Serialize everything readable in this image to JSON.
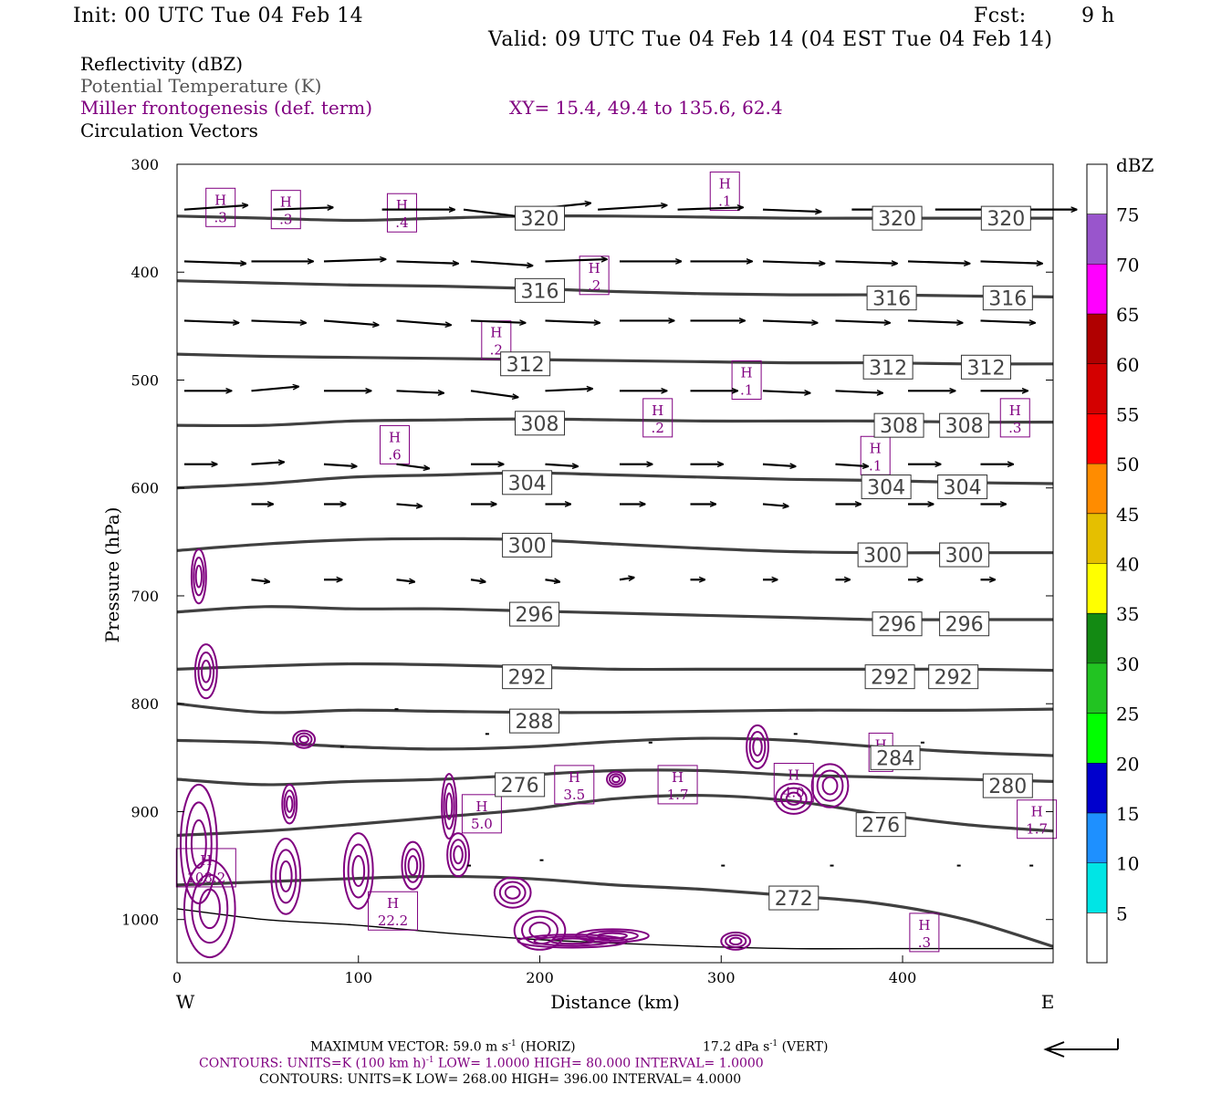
{
  "header": {
    "init": "Init: 00 UTC Tue 04 Feb 14",
    "fcst_label": "Fcst:",
    "fcst_value": "9 h",
    "valid": "Valid: 09 UTC Tue 04 Feb 14 (04 EST Tue 04 Feb 14)"
  },
  "legend": {
    "reflectivity": "Reflectivity (dBZ)",
    "theta": "Potential Temperature (K)",
    "frontogenesis": "Miller frontogenesis (def. term)",
    "xy": "XY=  15.4, 49.4 to 135.6, 62.4",
    "vectors": "Circulation Vectors"
  },
  "colors": {
    "theta": "#404040",
    "frontogenesis": "#800080",
    "vectors": "#000000"
  },
  "chart_data": {
    "type": "cross-section",
    "xlabel": "Distance (km)",
    "ylabel": "Pressure (hPa)",
    "xlim": [
      0,
      483
    ],
    "ylim": [
      300,
      1040
    ],
    "x_ticks": [
      "0",
      "100",
      "200",
      "300",
      "400"
    ],
    "y_ticks": [
      "300",
      "400",
      "500",
      "600",
      "700",
      "800",
      "900",
      "1000"
    ],
    "west_label": "W",
    "east_label": "E",
    "colorbar": {
      "unit": "dBZ",
      "levels": [
        "5",
        "10",
        "15",
        "20",
        "25",
        "30",
        "35",
        "40",
        "45",
        "50",
        "55",
        "60",
        "65",
        "70",
        "75"
      ],
      "colors": [
        "#ffffff",
        "#00e5e5",
        "#1e90ff",
        "#0000cd",
        "#00ff00",
        "#22c322",
        "#138a13",
        "#ffff00",
        "#e5bf00",
        "#ff8c00",
        "#ff0000",
        "#d40000",
        "#b00000",
        "#ff00ff",
        "#9955cc",
        "#ffffff"
      ]
    },
    "theta_lines": [
      {
        "value": 320,
        "p": [
          348,
          350,
          352,
          350,
          348,
          348,
          349,
          350,
          350,
          350,
          350
        ]
      },
      {
        "value": 316,
        "p": [
          408,
          410,
          412,
          413,
          415,
          418,
          420,
          421,
          421,
          422,
          423
        ]
      },
      {
        "value": 312,
        "p": [
          476,
          478,
          479,
          480,
          481,
          482,
          483,
          484,
          484,
          485,
          485
        ]
      },
      {
        "value": 308,
        "p": [
          542,
          542,
          538,
          537,
          536,
          537,
          538,
          538,
          538,
          539,
          539
        ]
      },
      {
        "value": 304,
        "p": [
          600,
          596,
          590,
          588,
          586,
          588,
          590,
          592,
          593,
          595,
          596
        ]
      },
      {
        "value": 300,
        "p": [
          658,
          652,
          648,
          647,
          648,
          652,
          656,
          659,
          660,
          660,
          660
        ]
      },
      {
        "value": 296,
        "p": [
          715,
          710,
          712,
          712,
          714,
          716,
          718,
          720,
          722,
          722,
          722
        ]
      },
      {
        "value": 292,
        "p": [
          768,
          765,
          763,
          764,
          766,
          768,
          768,
          768,
          768,
          768,
          769
        ]
      },
      {
        "value": 288,
        "p": [
          800,
          808,
          806,
          807,
          808,
          808,
          807,
          806,
          806,
          806,
          805
        ]
      },
      {
        "value": 284,
        "p": [
          834,
          836,
          840,
          842,
          840,
          835,
          832,
          834,
          840,
          845,
          848
        ]
      },
      {
        "value": 280,
        "p": [
          870,
          875,
          872,
          870,
          866,
          862,
          862,
          866,
          868,
          870,
          872
        ]
      },
      {
        "value": 276,
        "p": [
          922,
          918,
          912,
          905,
          898,
          888,
          885,
          890,
          902,
          912,
          918
        ]
      },
      {
        "value": 272,
        "p": [
          968,
          965,
          962,
          960,
          962,
          968,
          972,
          978,
          985,
          1000,
          1025
        ]
      },
      {
        "value": 268,
        "p": [
          990,
          1000,
          1005,
          1012,
          1018,
          1022,
          1025,
          1027,
          1027,
          1027,
          1027
        ]
      }
    ],
    "theta_labels": [
      {
        "text": "320",
        "x": 200,
        "p": 350
      },
      {
        "text": "320",
        "x": 397,
        "p": 350
      },
      {
        "text": "320",
        "x": 457,
        "p": 350
      },
      {
        "text": "316",
        "x": 200,
        "p": 417
      },
      {
        "text": "316",
        "x": 394,
        "p": 424
      },
      {
        "text": "316",
        "x": 458,
        "p": 424
      },
      {
        "text": "312",
        "x": 192,
        "p": 485
      },
      {
        "text": "312",
        "x": 392,
        "p": 488
      },
      {
        "text": "312",
        "x": 446,
        "p": 488
      },
      {
        "text": "308",
        "x": 200,
        "p": 540
      },
      {
        "text": "308",
        "x": 398,
        "p": 542
      },
      {
        "text": "308",
        "x": 434,
        "p": 542
      },
      {
        "text": "304",
        "x": 193,
        "p": 595
      },
      {
        "text": "304",
        "x": 391,
        "p": 599
      },
      {
        "text": "304",
        "x": 433,
        "p": 599
      },
      {
        "text": "300",
        "x": 193,
        "p": 653
      },
      {
        "text": "300",
        "x": 389,
        "p": 662
      },
      {
        "text": "300",
        "x": 434,
        "p": 662
      },
      {
        "text": "296",
        "x": 197,
        "p": 717
      },
      {
        "text": "296",
        "x": 397,
        "p": 726
      },
      {
        "text": "296",
        "x": 434,
        "p": 726
      },
      {
        "text": "292",
        "x": 193,
        "p": 775
      },
      {
        "text": "292",
        "x": 393,
        "p": 775
      },
      {
        "text": "292",
        "x": 428,
        "p": 775
      },
      {
        "text": "288",
        "x": 197,
        "p": 816
      },
      {
        "text": "284",
        "x": 396,
        "p": 850
      },
      {
        "text": "280",
        "x": 458,
        "p": 876
      },
      {
        "text": "276",
        "x": 189,
        "p": 875
      },
      {
        "text": "276",
        "x": 388,
        "p": 912
      },
      {
        "text": "272",
        "x": 340,
        "p": 980
      }
    ],
    "frontogenesis_maxima": [
      {
        "label": "H",
        "value": ".3",
        "x": 24,
        "p": 340
      },
      {
        "label": "H",
        "value": ".3",
        "x": 60,
        "p": 342
      },
      {
        "label": "H",
        "value": ".4",
        "x": 124,
        "p": 345
      },
      {
        "label": "H",
        "value": ".1",
        "x": 302,
        "p": 325
      },
      {
        "label": "H",
        "value": ".2",
        "x": 230,
        "p": 403
      },
      {
        "label": "H",
        "value": ".2",
        "x": 176,
        "p": 463
      },
      {
        "label": "H",
        "value": ".1",
        "x": 314,
        "p": 500
      },
      {
        "label": "H",
        "value": ".2",
        "x": 265,
        "p": 535
      },
      {
        "label": "H",
        "value": ".3",
        "x": 462,
        "p": 535
      },
      {
        "label": "H",
        "value": ".6",
        "x": 120,
        "p": 560
      },
      {
        "label": "H",
        "value": ".1",
        "x": 385,
        "p": 570
      },
      {
        "label": "H",
        "value": "3.5",
        "x": 219,
        "p": 875
      },
      {
        "label": "H",
        "value": "1.7",
        "x": 276,
        "p": 875
      },
      {
        "label": "H",
        "value": "4.0",
        "x": 340,
        "p": 873
      },
      {
        "label": "H",
        "value": "5.0",
        "x": 168,
        "p": 902
      },
      {
        "label": "H",
        "value": "1.7",
        "x": 474,
        "p": 907
      },
      {
        "label": "H",
        "value": "108.2",
        "x": 16,
        "p": 952
      },
      {
        "label": "H",
        "value": "22.2",
        "x": 119,
        "p": 992
      },
      {
        "label": "H",
        "value": ".3",
        "x": 412,
        "p": 1012
      },
      {
        "label": "H",
        "value": "",
        "x": 388,
        "p": 845
      }
    ],
    "vector_rows": [
      {
        "p": 342,
        "x": [
          4,
          53,
          113,
          158,
          194,
          232,
          276,
          323,
          372,
          418,
          458
        ],
        "dx": [
          35,
          33,
          40,
          38,
          34,
          38,
          36,
          32,
          34,
          36,
          38
        ],
        "dp": [
          -4,
          -2,
          0,
          8,
          -6,
          -4,
          -2,
          2,
          0,
          0,
          0
        ]
      },
      {
        "p": 390,
        "x": [
          4,
          41,
          81,
          121,
          162,
          203,
          244,
          283,
          323,
          363,
          403,
          443
        ],
        "dx": [
          34,
          34,
          34,
          34,
          34,
          34,
          34,
          34,
          34,
          34,
          34,
          34
        ],
        "dp": [
          2,
          0,
          -2,
          2,
          4,
          -2,
          0,
          0,
          2,
          2,
          2,
          2
        ]
      },
      {
        "p": 445,
        "x": [
          4,
          41,
          81,
          121,
          162,
          203,
          244,
          283,
          323,
          363,
          403,
          443
        ],
        "dx": [
          30,
          30,
          30,
          30,
          30,
          30,
          30,
          30,
          30,
          30,
          30,
          30
        ],
        "dp": [
          2,
          2,
          4,
          4,
          2,
          2,
          0,
          0,
          2,
          2,
          2,
          2
        ]
      },
      {
        "p": 510,
        "x": [
          4,
          41,
          81,
          121,
          162,
          203,
          244,
          283,
          323,
          363,
          403,
          443
        ],
        "dx": [
          26,
          26,
          26,
          26,
          26,
          26,
          26,
          26,
          26,
          26,
          26,
          26
        ],
        "dp": [
          0,
          -4,
          0,
          2,
          6,
          -2,
          0,
          0,
          2,
          2,
          0,
          0
        ]
      },
      {
        "p": 578,
        "x": [
          4,
          41,
          81,
          121,
          162,
          203,
          244,
          283,
          323,
          363,
          403,
          443
        ],
        "dx": [
          18,
          18,
          18,
          18,
          18,
          18,
          18,
          18,
          18,
          18,
          18,
          18
        ],
        "dp": [
          0,
          -2,
          2,
          4,
          0,
          2,
          0,
          0,
          2,
          2,
          0,
          0
        ]
      },
      {
        "p": 615,
        "x": [
          4,
          41,
          81,
          121,
          162,
          203,
          244,
          283,
          323,
          363,
          403,
          443
        ],
        "dx": [
          0,
          12,
          12,
          14,
          14,
          14,
          14,
          14,
          14,
          14,
          14,
          14
        ],
        "dp": [
          0,
          0,
          0,
          2,
          0,
          0,
          0,
          0,
          2,
          0,
          0,
          0
        ]
      },
      {
        "p": 685,
        "x": [
          4,
          41,
          81,
          121,
          162,
          203,
          244,
          283,
          323,
          363,
          403,
          443
        ],
        "dx": [
          0,
          10,
          10,
          10,
          8,
          8,
          8,
          8,
          8,
          8,
          8,
          8
        ],
        "dp": [
          0,
          2,
          0,
          2,
          2,
          2,
          -2,
          0,
          0,
          0,
          0,
          0
        ]
      }
    ]
  },
  "footer": {
    "max_vector_prefix": "MAXIMUM VECTOR:  59.0 m s",
    "max_vector_sup": "-1",
    "max_vector_horiz": " (HORIZ)",
    "max_vector_vert_prefix": "17.2 dPa s",
    "max_vector_vert_sup": "-1",
    "max_vector_vert_suffix": " (VERT)",
    "contours1_prefix": "CONTOURS:  UNITS=K (100 km h)",
    "contours1_sup": "-1",
    "contours1_suffix": "  LOW=   1.0000       HIGH=  80.000       INTERVAL=    1.0000",
    "contours2": "CONTOURS:  UNITS=K  LOW=  268.00        HIGH=  396.00        INTERVAL=    4.0000"
  }
}
